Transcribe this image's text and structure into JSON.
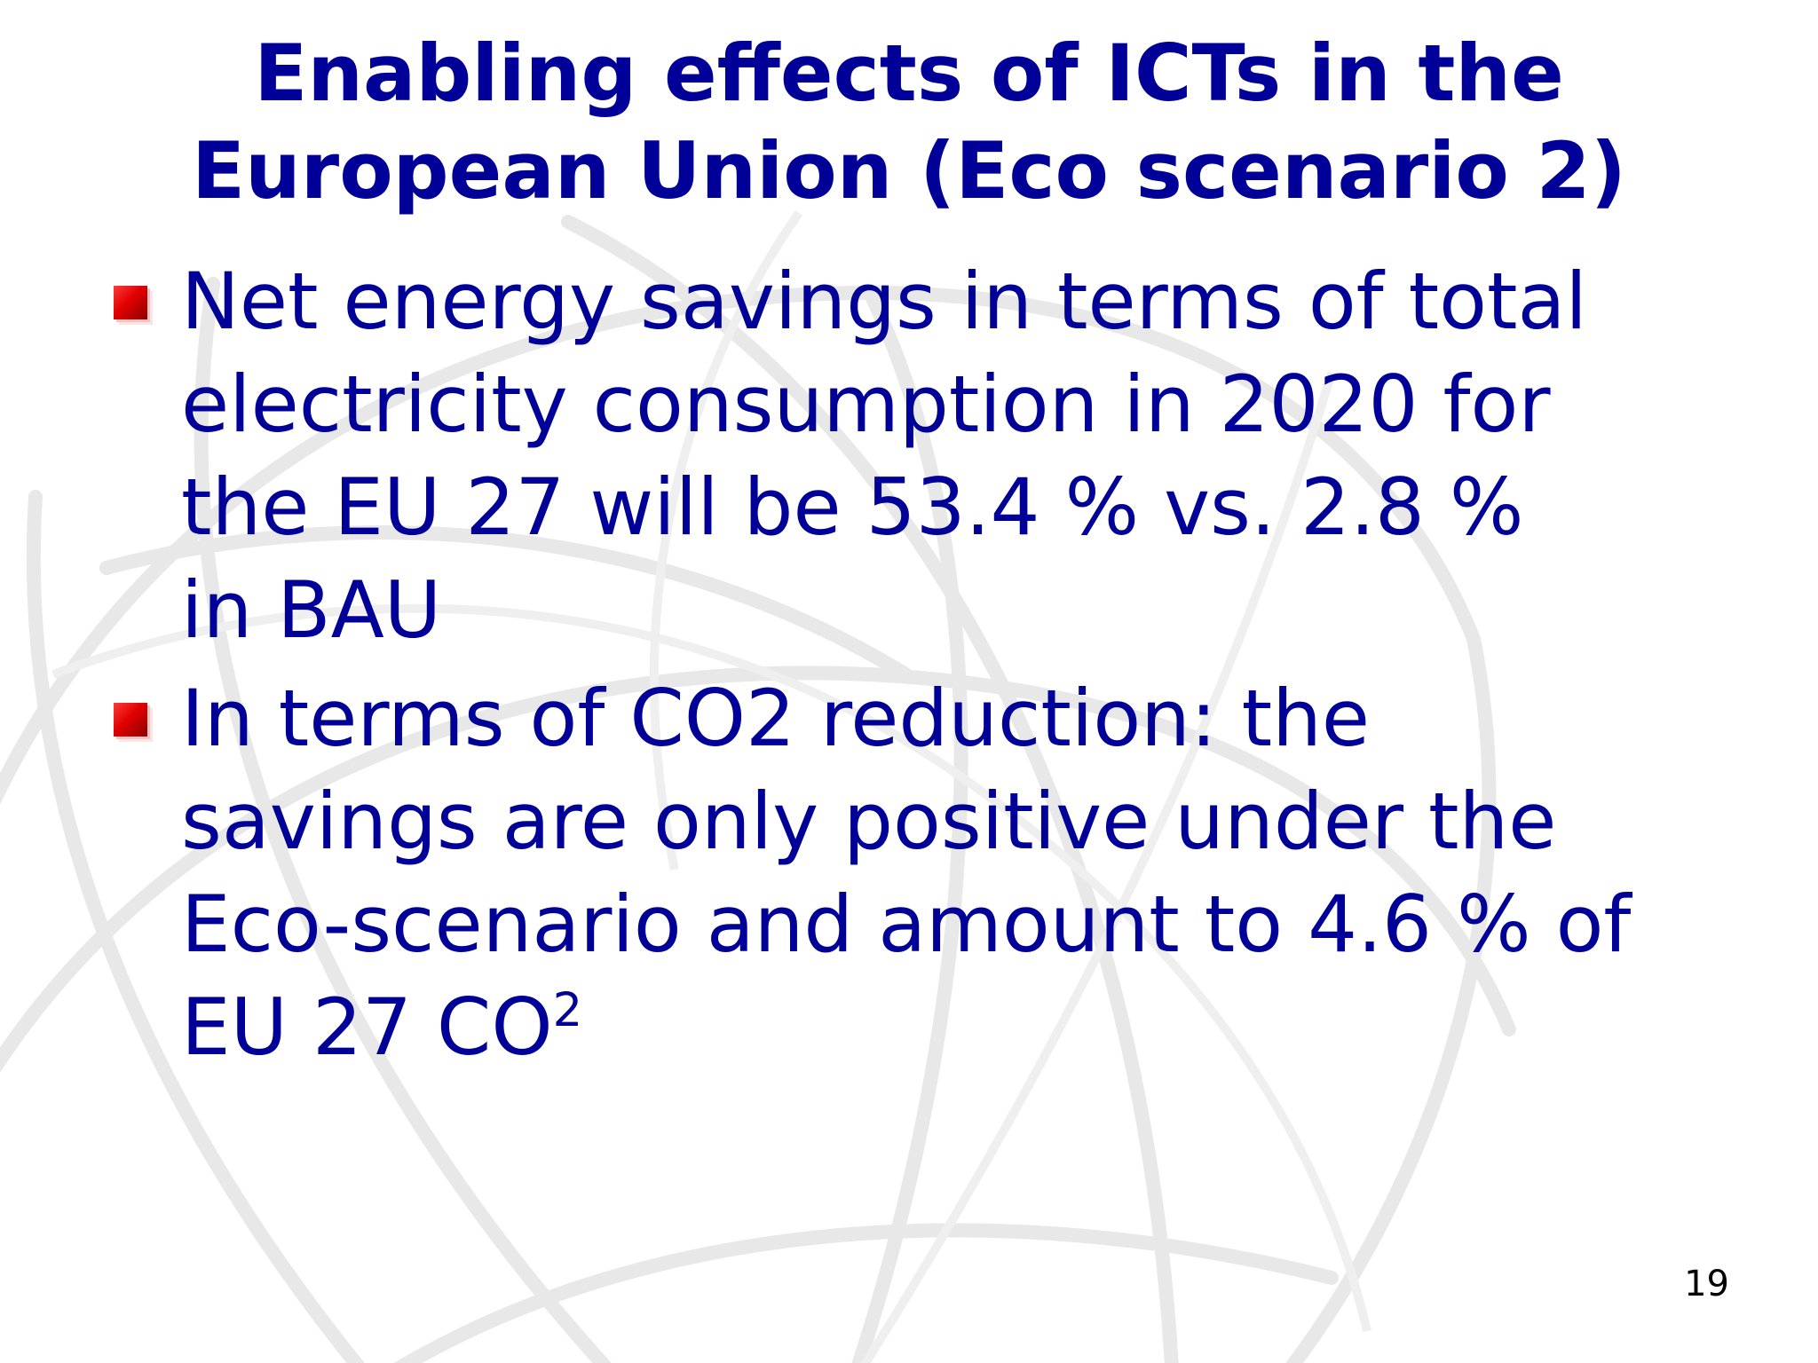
{
  "slide": {
    "title_lines": [
      "Enabling effects of ICTs in the",
      "European Union (Eco scenario 2)"
    ],
    "bullets": [
      {
        "lines": [
          "Net energy savings in terms of total",
          "electricity consumption in 2020 for",
          "the EU 27 will be 53.4 % vs. 2.8 %",
          "in BAU"
        ]
      },
      {
        "lines": [
          "In terms of CO2 reduction: the",
          "savings are only positive under the",
          "Eco-scenario and amount to 4.6 % of",
          "EU 27 CO"
        ],
        "superscript": "2"
      }
    ],
    "page_number": "19"
  },
  "colors": {
    "title": "#000099",
    "body_text": "#000099",
    "bullet_marker": "#e00000",
    "watermark": "#e6e6e6"
  },
  "icons": {
    "bullet_marker": "red-square-bullet-icon",
    "watermark": "globe-watermark-icon"
  }
}
